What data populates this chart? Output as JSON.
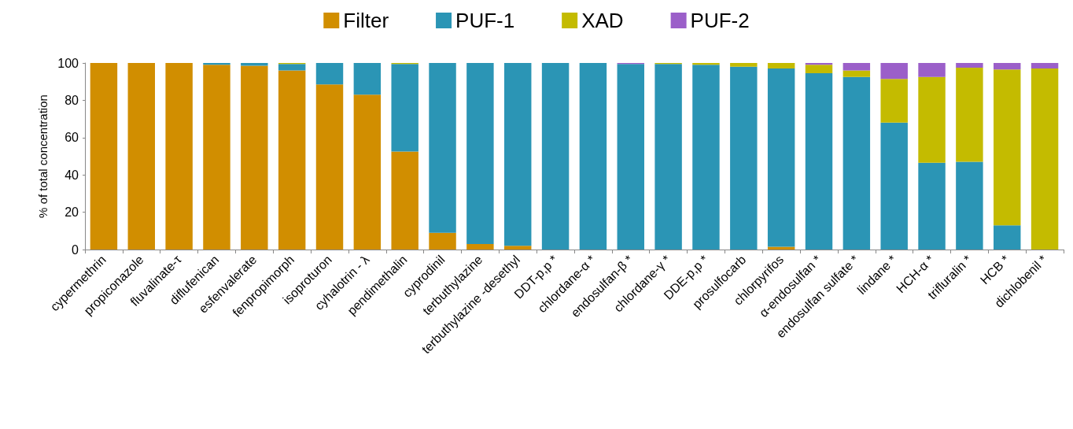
{
  "chart_data": {
    "type": "bar",
    "stacked": true,
    "ylabel": "% of total concentration",
    "legend": "top",
    "grid": false,
    "categories": [
      "cypermethrin",
      "propiconazole",
      "fluvalinate-τ",
      "diflufenican",
      "esfenvalerate",
      "fenpropimorph",
      "isoproturon",
      "cyhalotrin - λ",
      "pendimethalin",
      "cyprodinil",
      "terbuthylazine",
      "terbuthylazine -desethyl",
      "DDT-p,p *",
      "chlordane-α *",
      "endosulfan-β *",
      "chlordane-γ *",
      "DDE-p,p *",
      "prosulfocarb",
      "chlorpyrifos",
      "α-endosulfan *",
      "endosulfan sulfate *",
      "lindane *",
      "HCH-α *",
      "trifluralin *",
      "HCB *",
      "dichlobenil *"
    ],
    "ylim": [
      0,
      100
    ],
    "yticks": [
      0,
      20,
      40,
      60,
      80,
      100
    ],
    "series": [
      {
        "name": "Filter",
        "color": "#d18e00",
        "values": [
          100,
          100,
          100,
          99,
          98.5,
          96,
          88.5,
          83,
          52.5,
          9,
          3,
          2,
          0,
          0,
          0,
          0,
          0,
          0,
          1.5,
          0,
          0,
          0,
          0,
          0,
          0,
          0
        ]
      },
      {
        "name": "PUF-1",
        "color": "#2b95b5",
        "values": [
          0,
          0,
          0,
          1,
          1.5,
          3.5,
          11.5,
          17,
          47,
          91,
          97,
          98,
          100,
          100,
          99.5,
          99.5,
          99,
          98,
          95.5,
          94.5,
          92.5,
          68,
          46.5,
          47,
          13,
          0
        ]
      },
      {
        "name": "XAD",
        "color": "#c4bb00",
        "values": [
          0,
          0,
          0,
          0,
          0,
          0.5,
          0,
          0,
          0.5,
          0,
          0,
          0,
          0,
          0,
          0,
          0.5,
          1,
          2,
          3,
          4.5,
          3.5,
          23.5,
          46,
          50.5,
          83.5,
          97
        ]
      },
      {
        "name": "PUF-2",
        "color": "#9b5fc9",
        "values": [
          0,
          0,
          0,
          0,
          0,
          0,
          0,
          0,
          0,
          0,
          0,
          0,
          0,
          0,
          0.5,
          0,
          0,
          0,
          0,
          1,
          4,
          8.5,
          7.5,
          2.5,
          3.5,
          3
        ]
      }
    ]
  }
}
